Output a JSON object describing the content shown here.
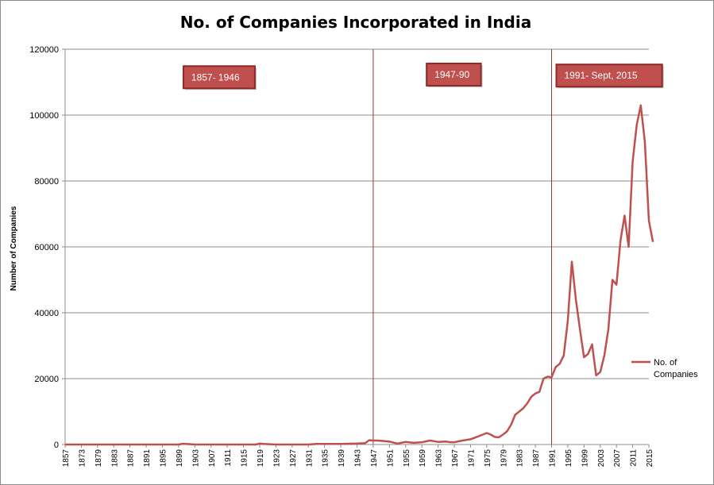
{
  "chart_data": {
    "type": "line",
    "title": "No. of Companies Incorporated in India",
    "xlabel": "",
    "ylabel": "Number of Companies",
    "ylim": [
      0,
      120000
    ],
    "yticks": [
      0,
      20000,
      40000,
      60000,
      80000,
      100000,
      120000
    ],
    "grid": true,
    "legend": "right",
    "xticks": [
      "1857",
      "1873",
      "1879",
      "1883",
      "1887",
      "1891",
      "1895",
      "1899",
      "1903",
      "1907",
      "1911",
      "1915",
      "1919",
      "1923",
      "1927",
      "1931",
      "1935",
      "1939",
      "1943",
      "1947",
      "1951",
      "1955",
      "1959",
      "1963",
      "1967",
      "1971",
      "1975",
      "1979",
      "1983",
      "1987",
      "1991",
      "1995",
      "1999",
      "2003",
      "2007",
      "2011",
      "2015"
    ],
    "series": [
      {
        "name": "No. of Companies",
        "color": "#c0504d",
        "points": [
          [
            "1857",
            0
          ],
          [
            "1873",
            0
          ],
          [
            "1879",
            0
          ],
          [
            "1883",
            0
          ],
          [
            "1887",
            0
          ],
          [
            "1891",
            0
          ],
          [
            "1895",
            0
          ],
          [
            "1899",
            0
          ],
          [
            "1900",
            250
          ],
          [
            "1903",
            0
          ],
          [
            "1907",
            0
          ],
          [
            "1911",
            0
          ],
          [
            "1915",
            0
          ],
          [
            "1918",
            0
          ],
          [
            "1919",
            300
          ],
          [
            "1920",
            200
          ],
          [
            "1923",
            0
          ],
          [
            "1927",
            0
          ],
          [
            "1931",
            0
          ],
          [
            "1933",
            200
          ],
          [
            "1935",
            200
          ],
          [
            "1939",
            200
          ],
          [
            "1941",
            250
          ],
          [
            "1943",
            300
          ],
          [
            "1945",
            400
          ],
          [
            "1946",
            1300
          ],
          [
            "1947",
            1200
          ],
          [
            "1948",
            1200
          ],
          [
            "1949",
            1100
          ],
          [
            "1951",
            900
          ],
          [
            "1953",
            300
          ],
          [
            "1955",
            800
          ],
          [
            "1957",
            500
          ],
          [
            "1959",
            700
          ],
          [
            "1961",
            1200
          ],
          [
            "1963",
            800
          ],
          [
            "1965",
            900
          ],
          [
            "1966",
            700
          ],
          [
            "1967",
            700
          ],
          [
            "1969",
            1200
          ],
          [
            "1971",
            1600
          ],
          [
            "1973",
            2500
          ],
          [
            "1975",
            3500
          ],
          [
            "1976",
            3000
          ],
          [
            "1977",
            2300
          ],
          [
            "1978",
            2200
          ],
          [
            "1979",
            3000
          ],
          [
            "1980",
            4000
          ],
          [
            "1981",
            6000
          ],
          [
            "1982",
            9000
          ],
          [
            "1983",
            10000
          ],
          [
            "1984",
            11000
          ],
          [
            "1985",
            12500
          ],
          [
            "1986",
            14500
          ],
          [
            "1987",
            15500
          ],
          [
            "1988",
            16000
          ],
          [
            "1989",
            20000
          ],
          [
            "1990",
            20600
          ],
          [
            "1991",
            20400
          ],
          [
            "1992",
            23500
          ],
          [
            "1993",
            24500
          ],
          [
            "1994",
            27000
          ],
          [
            "1995",
            37500
          ],
          [
            "1996",
            55500
          ],
          [
            "1997",
            44000
          ],
          [
            "1998",
            35000
          ],
          [
            "1999",
            26500
          ],
          [
            "2000",
            27500
          ],
          [
            "2001",
            30400
          ],
          [
            "2002",
            21000
          ],
          [
            "2003",
            22000
          ],
          [
            "2004",
            27000
          ],
          [
            "2005",
            35000
          ],
          [
            "2006",
            50000
          ],
          [
            "2007",
            48500
          ],
          [
            "2008",
            62000
          ],
          [
            "2009",
            69500
          ],
          [
            "2010",
            60000
          ],
          [
            "2011",
            86000
          ],
          [
            "2012",
            97000
          ],
          [
            "2013",
            103000
          ],
          [
            "2014",
            92000
          ],
          [
            "2015",
            68000
          ],
          [
            "2016",
            61500
          ]
        ]
      }
    ],
    "annotations": [
      {
        "text": "1857- 1946",
        "after_tick": "1899",
        "y": 111500
      },
      {
        "text": "1947-90",
        "after_tick": "1959",
        "y": 112300
      },
      {
        "text": "1991- Sept, 2015",
        "after_tick": "1991",
        "y": 112000
      }
    ],
    "dividers": [
      "1947",
      "1991"
    ]
  }
}
